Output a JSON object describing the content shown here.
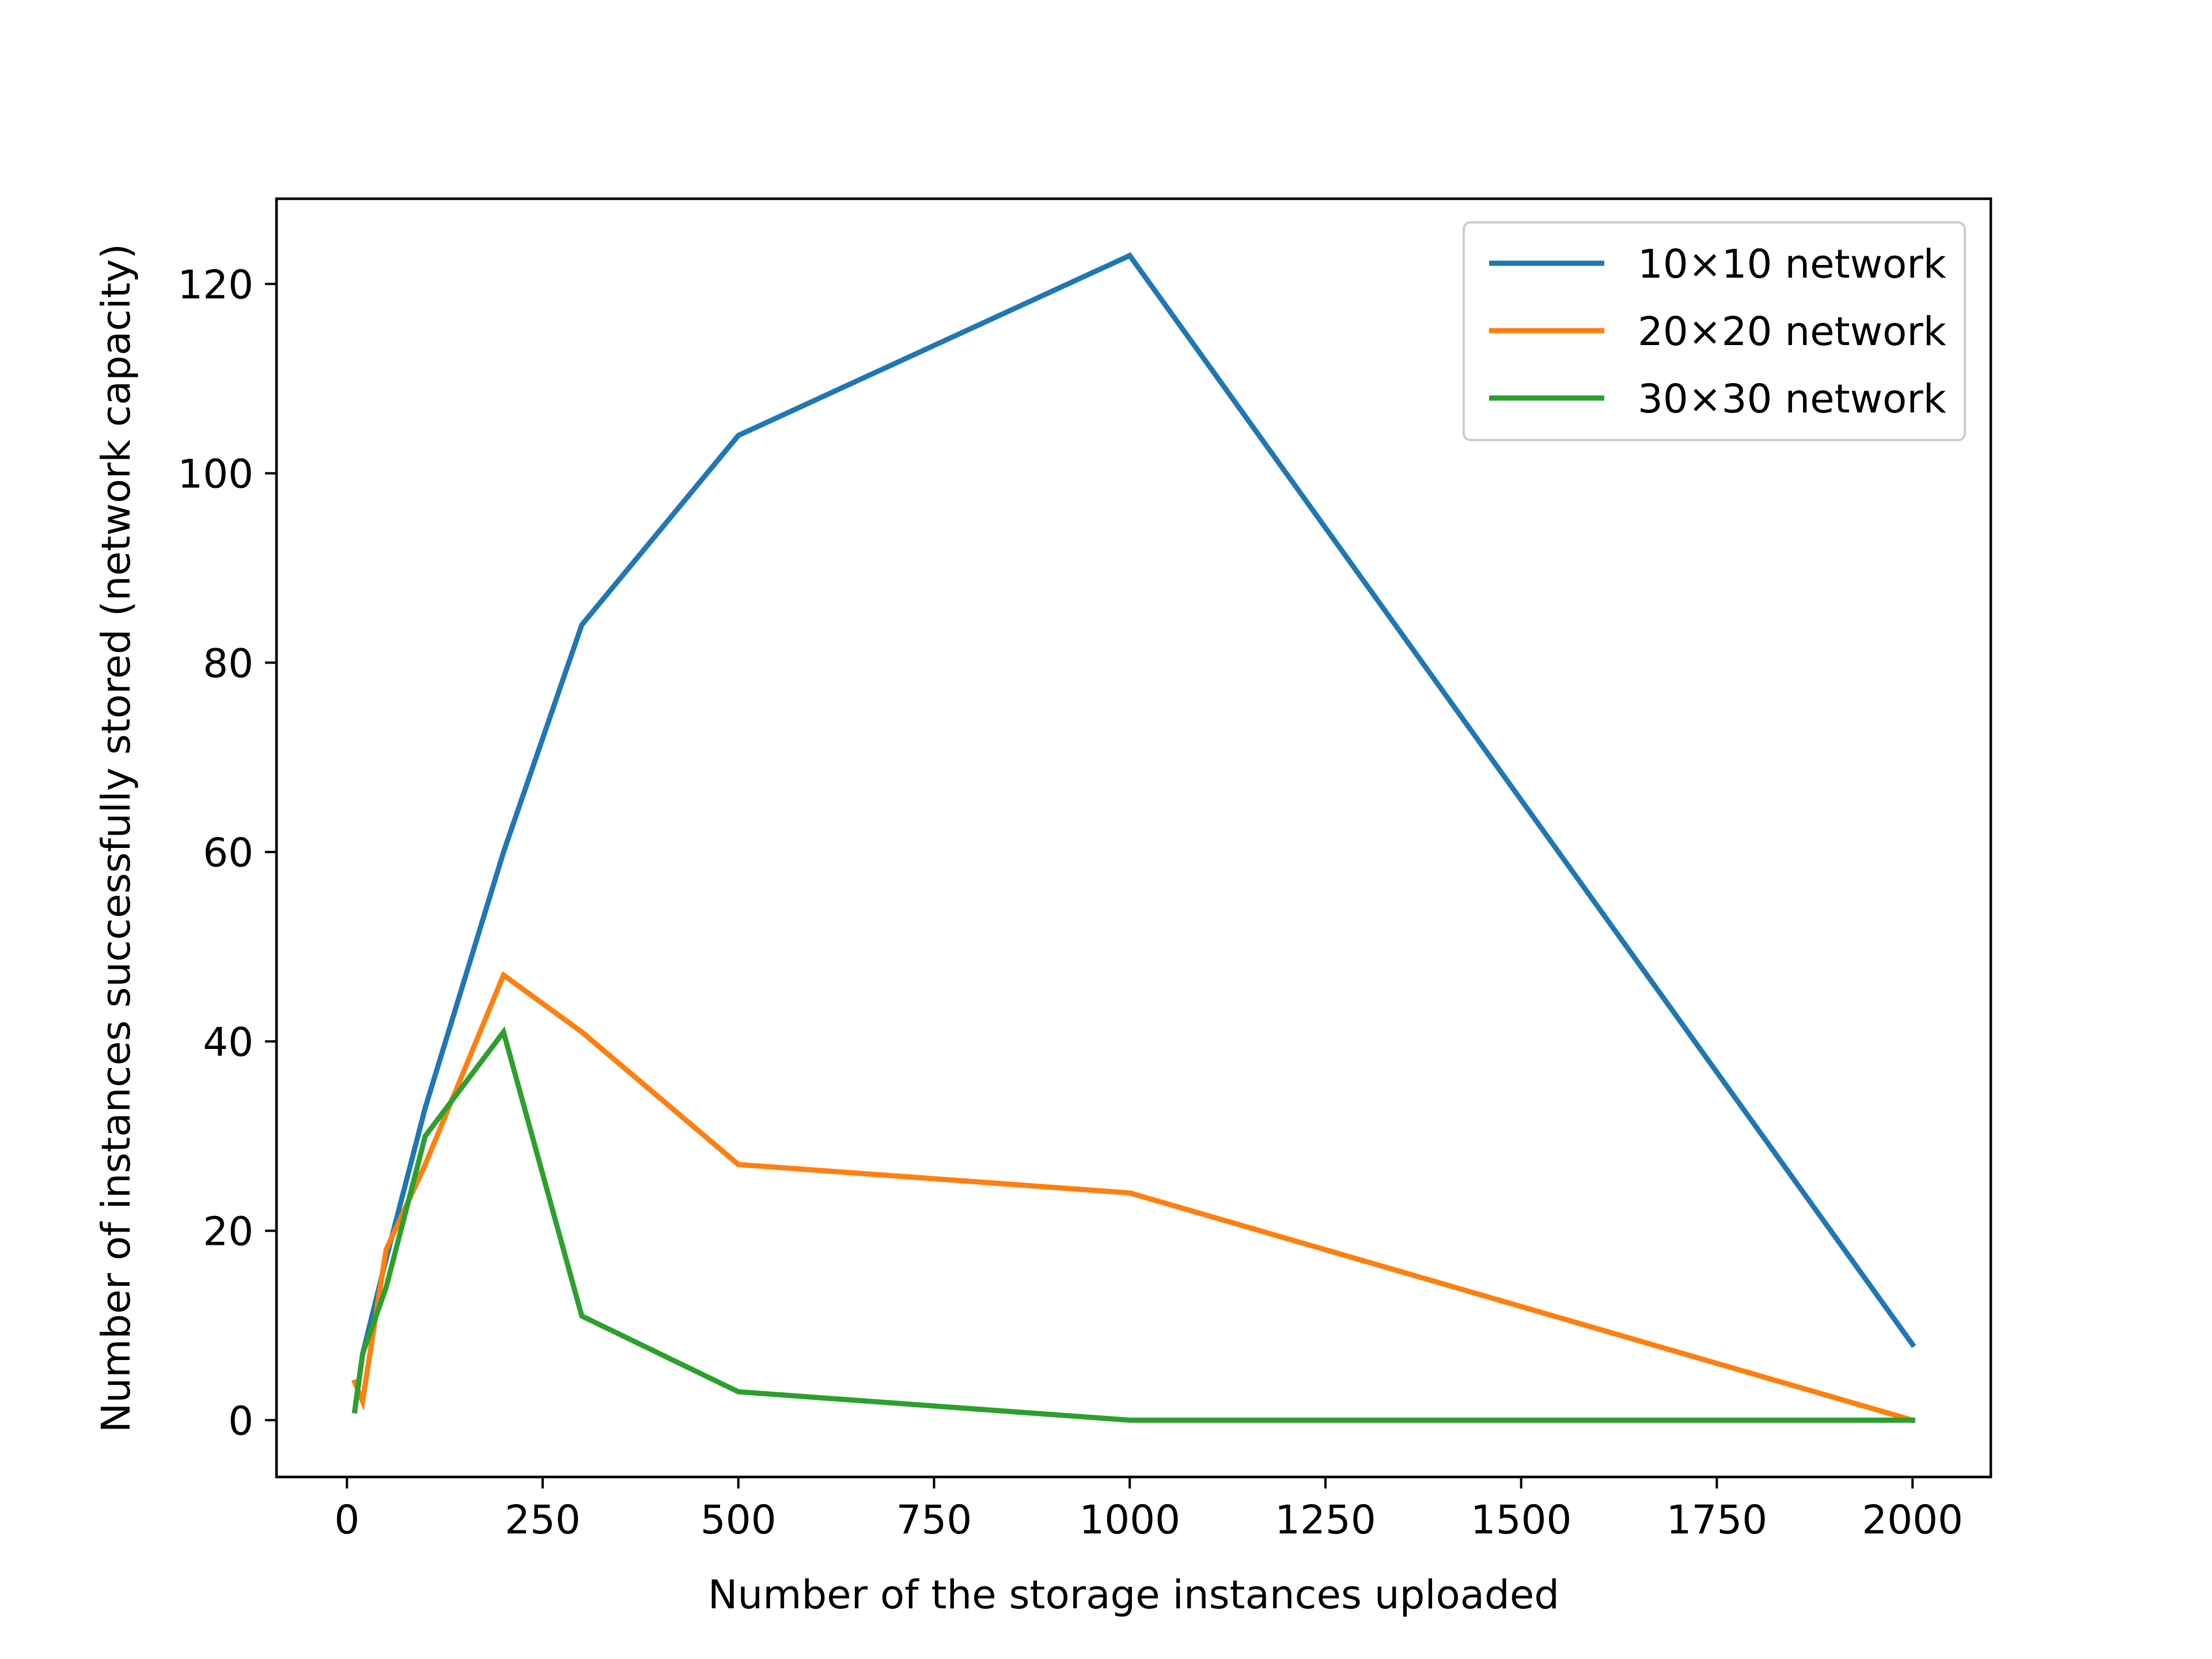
{
  "chart_data": {
    "type": "line",
    "title": "",
    "xlabel": "Number of the storage instances uploaded",
    "ylabel": "Number of instances successfully stored (network capacity)",
    "xlim": [
      -90,
      2100
    ],
    "ylim": [
      -6,
      129
    ],
    "xticks": [
      0,
      250,
      500,
      750,
      1000,
      1250,
      1500,
      1750,
      2000
    ],
    "xtick_labels": [
      "0",
      "250",
      "500",
      "750",
      "1000",
      "1250",
      "1500",
      "1750",
      "2000"
    ],
    "yticks": [
      0,
      20,
      40,
      60,
      80,
      100,
      120
    ],
    "ytick_labels": [
      "0",
      "20",
      "40",
      "60",
      "80",
      "100",
      "120"
    ],
    "grid": false,
    "legend_position": "top-right",
    "series": [
      {
        "name": "10×10 network",
        "color": "#1f77b4",
        "points": [
          [
            10,
            1
          ],
          [
            20,
            7
          ],
          [
            50,
            17
          ],
          [
            100,
            33
          ],
          [
            200,
            60
          ],
          [
            300,
            84
          ],
          [
            500,
            104
          ],
          [
            1000,
            123
          ],
          [
            2000,
            8
          ]
        ]
      },
      {
        "name": "20×20 network",
        "color": "#ff7f0e",
        "points": [
          [
            10,
            4
          ],
          [
            20,
            2
          ],
          [
            50,
            18
          ],
          [
            100,
            27
          ],
          [
            200,
            47
          ],
          [
            300,
            41
          ],
          [
            500,
            27
          ],
          [
            1000,
            24
          ],
          [
            2000,
            0
          ]
        ]
      },
      {
        "name": "30×30 network",
        "color": "#2ca02c",
        "points": [
          [
            10,
            1
          ],
          [
            20,
            7
          ],
          [
            50,
            14
          ],
          [
            100,
            30
          ],
          [
            200,
            41
          ],
          [
            300,
            11
          ],
          [
            500,
            3
          ],
          [
            1000,
            0
          ],
          [
            2000,
            0
          ]
        ]
      }
    ]
  }
}
